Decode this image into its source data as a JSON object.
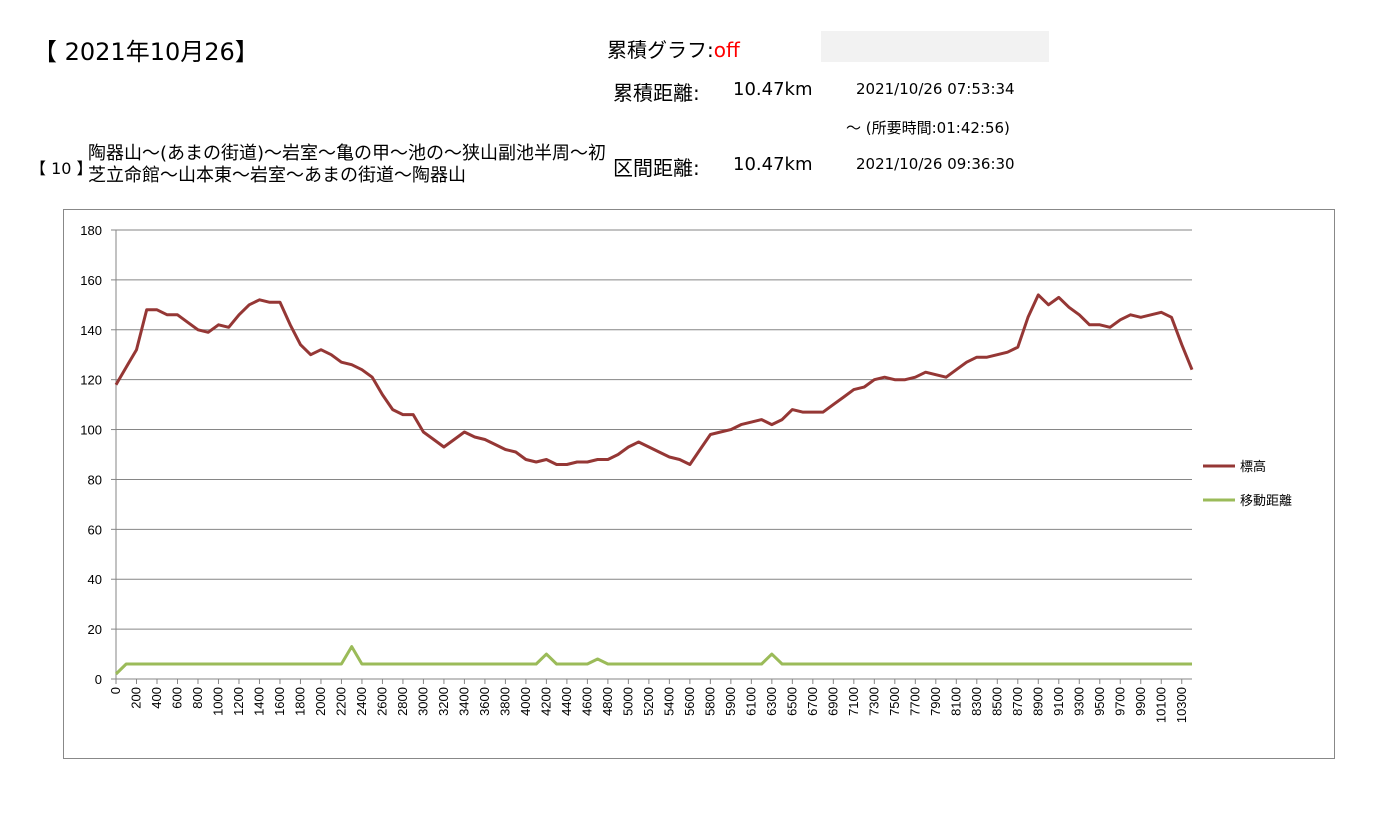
{
  "header": {
    "title": "【 2021年10月26】",
    "cumulative_graph_label": "累積グラフ:",
    "cumulative_graph_value": "off",
    "cumulative_distance_label": "累積距離:",
    "cumulative_distance": "10.47km",
    "start_time": "2021/10/26 07:53:34",
    "duration": "～ (所要時間:01:42:56)",
    "route_number": "【 10 】",
    "route": "陶器山～(あまの街道)～岩室～亀の甲～池の～狭山副池半周～初芝立命館～山本東～岩室～あまの街道～陶器山",
    "section_distance_label": "区間距離:",
    "section_distance": "10.47km",
    "end_time": "2021/10/26 09:36:30"
  },
  "chart_data": {
    "type": "line",
    "categories": [
      "0",
      null,
      "200",
      null,
      "400",
      null,
      "600",
      null,
      "800",
      null,
      "1000",
      null,
      "1200",
      null,
      "1400",
      null,
      "1600",
      null,
      "1800",
      null,
      "2000",
      null,
      "2200",
      null,
      "2400",
      null,
      "2600",
      null,
      "2800",
      null,
      "3000",
      null,
      "3200",
      null,
      "3400",
      null,
      "3600",
      null,
      "3800",
      null,
      "4000",
      null,
      "4200",
      null,
      "4400",
      null,
      "4600",
      null,
      "4800",
      null,
      "5000",
      null,
      "5200",
      null,
      "5400",
      null,
      "5600",
      null,
      "5800",
      null,
      "5900",
      null,
      "6100",
      null,
      "6300",
      null,
      "6500",
      null,
      "6700",
      null,
      "6900",
      null,
      "7100",
      null,
      "7300",
      null,
      "7500",
      null,
      "7700",
      null,
      "7900",
      null,
      "8100",
      null,
      "8300",
      null,
      "8500",
      null,
      "8700",
      null,
      "8900",
      null,
      "9100",
      null,
      "9300",
      null,
      "9500",
      null,
      "9700",
      null,
      "9900",
      null,
      "10100",
      null,
      "10300",
      null
    ],
    "series": [
      {
        "name": "標高",
        "color": "#953735",
        "values": [
          118,
          125,
          132,
          148,
          148,
          146,
          146,
          143,
          140,
          139,
          142,
          141,
          146,
          150,
          152,
          151,
          151,
          142,
          134,
          130,
          132,
          130,
          127,
          126,
          124,
          121,
          114,
          108,
          106,
          106,
          99,
          96,
          93,
          96,
          99,
          97,
          96,
          94,
          92,
          91,
          88,
          87,
          88,
          86,
          86,
          87,
          87,
          88,
          88,
          90,
          93,
          95,
          93,
          91,
          89,
          88,
          86,
          92,
          98,
          99,
          100,
          102,
          103,
          104,
          102,
          104,
          108,
          107,
          107,
          107,
          110,
          113,
          116,
          117,
          120,
          121,
          120,
          120,
          121,
          123,
          122,
          121,
          124,
          127,
          129,
          129,
          130,
          131,
          133,
          145,
          154,
          150,
          153,
          149,
          146,
          142,
          142,
          141,
          144,
          146,
          145,
          146,
          147,
          145,
          134,
          124
        ]
      },
      {
        "name": "移動距離",
        "color": "#9bbb59",
        "values": [
          2,
          6,
          6,
          6,
          6,
          6,
          6,
          6,
          6,
          6,
          6,
          6,
          6,
          6,
          6,
          6,
          6,
          6,
          6,
          6,
          6,
          6,
          6,
          13,
          6,
          6,
          6,
          6,
          6,
          6,
          6,
          6,
          6,
          6,
          6,
          6,
          6,
          6,
          6,
          6,
          6,
          6,
          10,
          6,
          6,
          6,
          6,
          8,
          6,
          6,
          6,
          6,
          6,
          6,
          6,
          6,
          6,
          6,
          6,
          6,
          6,
          6,
          6,
          6,
          10,
          6,
          6,
          6,
          6,
          6,
          6,
          6,
          6,
          6,
          6,
          6,
          6,
          6,
          6,
          6,
          6,
          6,
          6,
          6,
          6,
          6,
          6,
          6,
          6,
          6,
          6,
          6,
          6,
          6,
          6,
          6,
          6,
          6,
          6,
          6,
          6,
          6,
          6,
          6,
          6,
          6
        ]
      }
    ],
    "ylim": [
      0,
      180
    ],
    "yticks": [
      0,
      20,
      40,
      60,
      80,
      100,
      120,
      140,
      160,
      180
    ],
    "grid": true,
    "legend": "right"
  }
}
